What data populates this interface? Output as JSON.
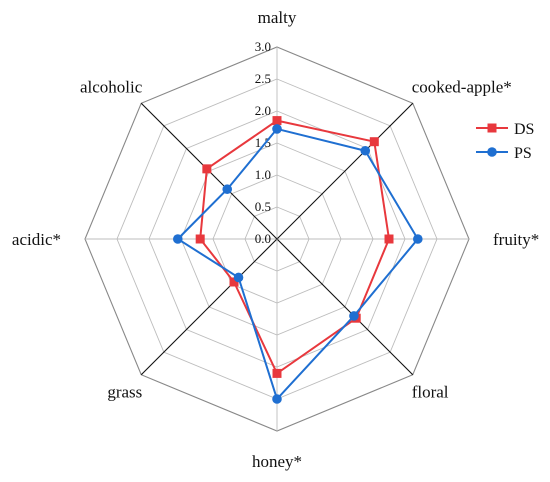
{
  "chart_data": {
    "type": "radar",
    "axes": [
      "malty",
      "cooked-apple*",
      "fruity*",
      "floral",
      "honey*",
      "grass",
      "acidic*",
      "alcoholic"
    ],
    "ticks": [
      "0.0",
      "0.5",
      "1.0",
      "1.5",
      "2.0",
      "2.5",
      "3.0"
    ],
    "rlim": [
      0,
      3
    ],
    "grid": true,
    "legend_position": "right",
    "series": [
      {
        "name": "DS",
        "color": "#e8383d",
        "marker": "square",
        "values": [
          1.85,
          2.15,
          1.75,
          1.75,
          2.1,
          0.95,
          1.2,
          1.55
        ]
      },
      {
        "name": "PS",
        "color": "#1f6fd1",
        "marker": "circle",
        "values": [
          1.72,
          1.95,
          2.2,
          1.7,
          2.5,
          0.85,
          1.55,
          1.1
        ]
      }
    ]
  }
}
